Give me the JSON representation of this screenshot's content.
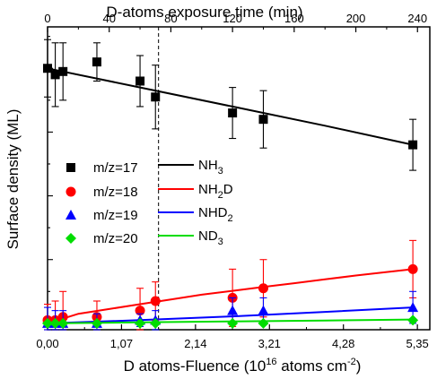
{
  "chart_data": {
    "type": "scatter",
    "top_axis": {
      "label": "D-atoms exposure time (min)",
      "ticks": [
        0,
        40,
        80,
        120,
        160,
        200,
        240
      ],
      "range": [
        0,
        248
      ]
    },
    "bottom_axis": {
      "label_main": "D atoms-Fluence (10",
      "label_sup1": "16",
      "label_mid": " atoms cm",
      "label_sup2": "-2",
      "label_end": ")",
      "ticks": [
        0.0,
        1.07,
        2.14,
        3.21,
        4.28,
        5.35
      ],
      "tick_labels": [
        "0,00",
        "1,07",
        "2,14",
        "3,21",
        "4,28",
        "5,35"
      ],
      "range": [
        0.0,
        5.53
      ]
    },
    "y_axis": {
      "label": "Surface density (ML)",
      "range": [
        -0.02,
        0.93
      ],
      "minor_ticks": [
        0.0,
        0.1,
        0.2,
        0.3,
        0.4,
        0.5,
        0.6,
        0.7,
        0.8,
        0.9
      ],
      "major_ticks": [
        0.0,
        0.2,
        0.4,
        0.6,
        0.8
      ]
    },
    "vertical_dashed_line_at_time_min": 72,
    "grid": false,
    "legend_placement": "left-middle",
    "series": [
      {
        "name": "m/z=17",
        "marker": "square",
        "color": "#000000",
        "x_time": [
          0,
          5,
          10,
          32,
          60,
          70,
          120,
          140,
          237
        ],
        "y": [
          0.8,
          0.78,
          0.79,
          0.82,
          0.76,
          0.71,
          0.66,
          0.64,
          0.56
        ],
        "err": [
          0.09,
          0.1,
          0.09,
          0.06,
          0.08,
          0.1,
          0.08,
          0.09,
          0.08
        ]
      },
      {
        "name": "m/z=18",
        "marker": "circle",
        "color": "#ff0000",
        "x_time": [
          0,
          5,
          10,
          32,
          60,
          70,
          120,
          140,
          237
        ],
        "y": [
          0.01,
          0.01,
          0.02,
          0.02,
          0.04,
          0.07,
          0.08,
          0.11,
          0.17
        ],
        "err": [
          0.05,
          0.06,
          0.08,
          0.05,
          0.07,
          0.06,
          0.09,
          0.09,
          0.09
        ]
      },
      {
        "name": "m/z=19",
        "marker": "triangle",
        "color": "#0000ff",
        "x_time": [
          0,
          5,
          10,
          32,
          60,
          70,
          120,
          140,
          237
        ],
        "y": [
          0.0,
          0.0,
          0.0,
          0.0,
          0.01,
          0.01,
          0.04,
          0.04,
          0.05
        ],
        "err": [
          0.05,
          0.04,
          0.04,
          0.03,
          0.02,
          0.03,
          0.04,
          0.04,
          0.05
        ]
      },
      {
        "name": "m/z=20",
        "marker": "diamond",
        "color": "#00dd00",
        "x_time": [
          0,
          5,
          10,
          32,
          60,
          70,
          120,
          140,
          237
        ],
        "y": [
          0.0,
          0.0,
          0.0,
          0.0,
          0.0,
          0.0,
          0.0,
          0.0,
          0.01
        ],
        "err": [
          0.0,
          0.0,
          0.0,
          0.0,
          0.0,
          0.0,
          0.0,
          0.0,
          0.0
        ]
      }
    ],
    "fits": [
      {
        "name": "NH",
        "sub": "3",
        "color": "#000000",
        "x_time": [
          0,
          60,
          120,
          180,
          237
        ],
        "y": [
          0.8,
          0.74,
          0.68,
          0.62,
          0.56
        ]
      },
      {
        "name": "NH",
        "sub": "2",
        "suffix": "D",
        "color": "#ff0000",
        "x_time": [
          0,
          20,
          40,
          60,
          80,
          100,
          120,
          140,
          160,
          180,
          200,
          220,
          237
        ],
        "y": [
          0.0,
          0.03,
          0.045,
          0.06,
          0.075,
          0.09,
          0.102,
          0.114,
          0.126,
          0.138,
          0.15,
          0.161,
          0.17
        ]
      },
      {
        "name": "NHD",
        "sub": "2",
        "color": "#0000ff",
        "x_time": [
          0,
          60,
          120,
          180,
          237
        ],
        "y": [
          0.0,
          0.01,
          0.022,
          0.036,
          0.05
        ]
      },
      {
        "name": "ND",
        "sub": "3",
        "color": "#00dd00",
        "x_time": [
          0,
          60,
          120,
          180,
          237
        ],
        "y": [
          0.0,
          0.003,
          0.006,
          0.009,
          0.012
        ]
      }
    ]
  }
}
